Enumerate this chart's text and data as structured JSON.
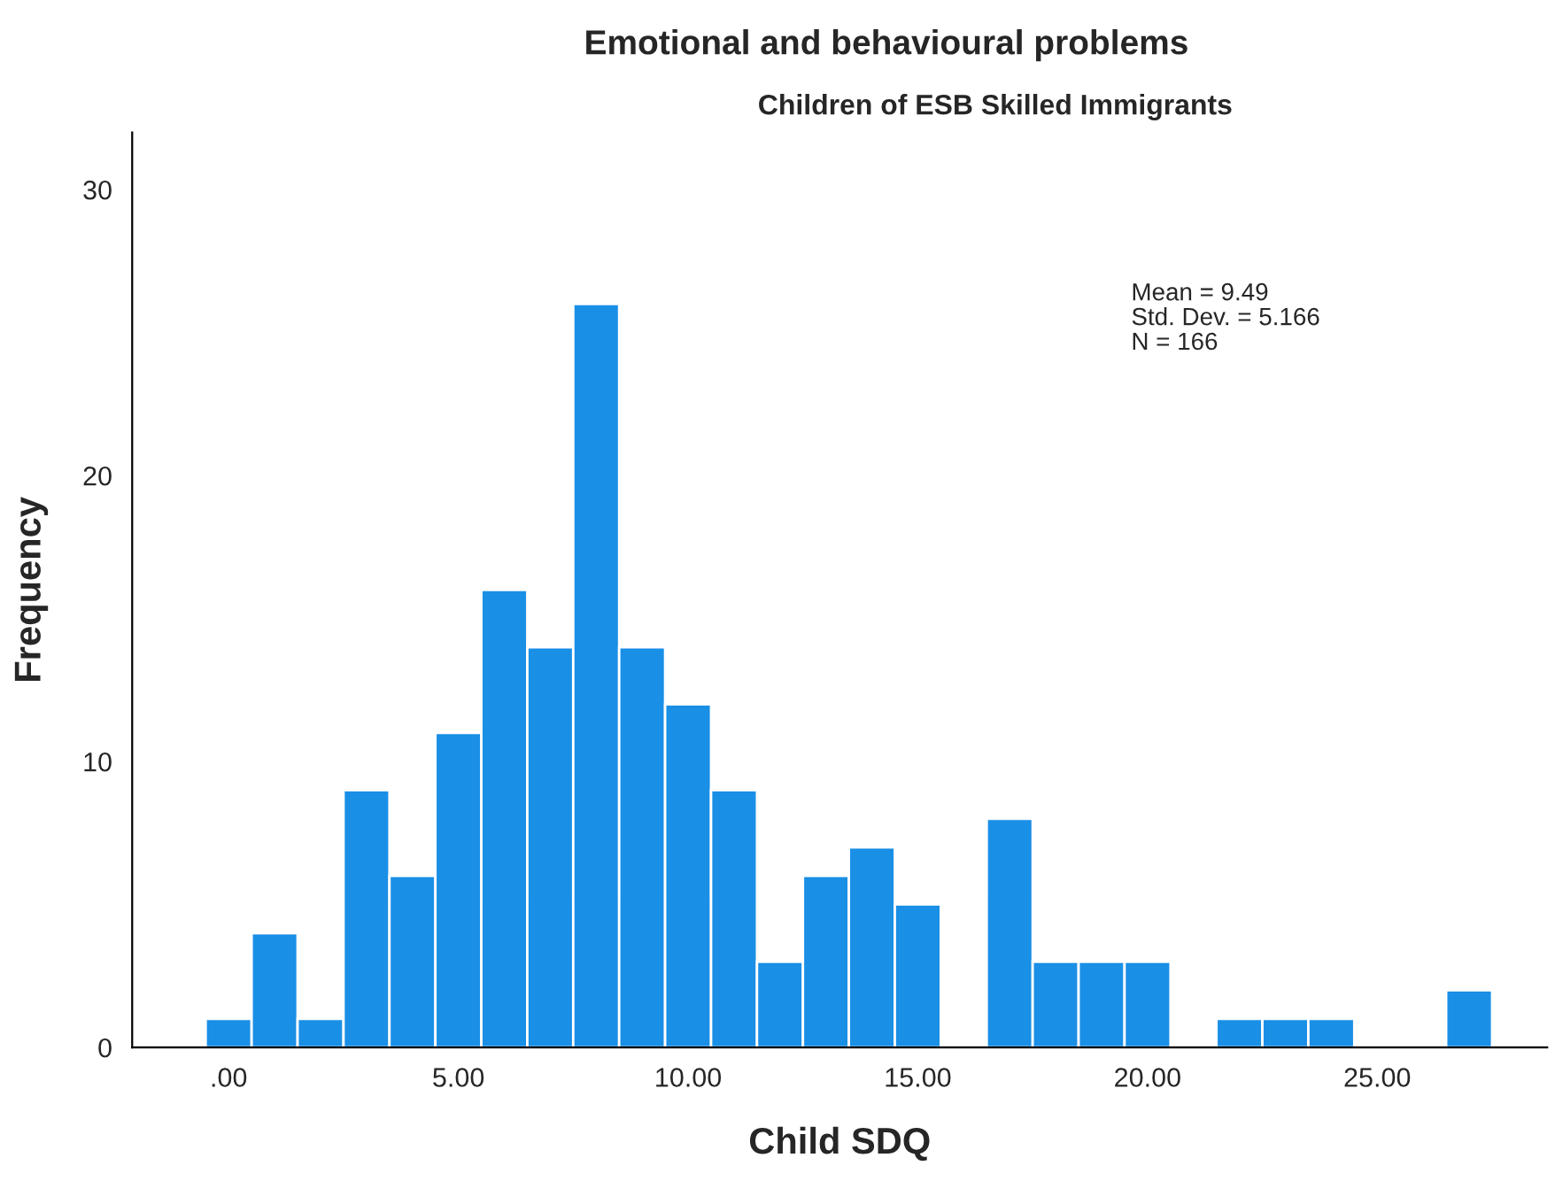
{
  "chart_data": {
    "type": "histogram",
    "title": "Emotional and behavioural problems",
    "subtitle": "Children of ESB Skilled Immigrants",
    "xlabel": "Child SDQ",
    "ylabel": "Frequency",
    "bins": [
      -0.5,
      0.5,
      1.5,
      2.5,
      3.5,
      4.5,
      5.5,
      6.5,
      7.5,
      8.5,
      9.5,
      10.5,
      11.5,
      12.5,
      13.5,
      14.5,
      15.5,
      16.5,
      17.5,
      18.5,
      19.5,
      20.5,
      21.5,
      22.5,
      23.5,
      24.5,
      25.5,
      26.5,
      27.5
    ],
    "values": [
      1,
      4,
      1,
      9,
      6,
      11,
      16,
      14,
      26,
      14,
      12,
      9,
      3,
      6,
      7,
      5,
      0,
      8,
      3,
      3,
      3,
      0,
      1,
      1,
      1,
      0,
      0,
      2
    ],
    "color": "#1a8fe6",
    "xlim": [
      -2.1,
      28.7
    ],
    "ylim": [
      0,
      32
    ],
    "xticks": [
      {
        "value": 0,
        "label": ".00"
      },
      {
        "value": 5,
        "label": "5.00"
      },
      {
        "value": 10,
        "label": "10.00"
      },
      {
        "value": 15,
        "label": "15.00"
      },
      {
        "value": 20,
        "label": "20.00"
      },
      {
        "value": 25,
        "label": "25.00"
      }
    ],
    "yticks": [
      0,
      10,
      20,
      30
    ],
    "grid": false,
    "legend": false,
    "annotations": [
      "Mean = 9.49",
      "Std. Dev. = 5.166",
      "N = 166"
    ]
  }
}
